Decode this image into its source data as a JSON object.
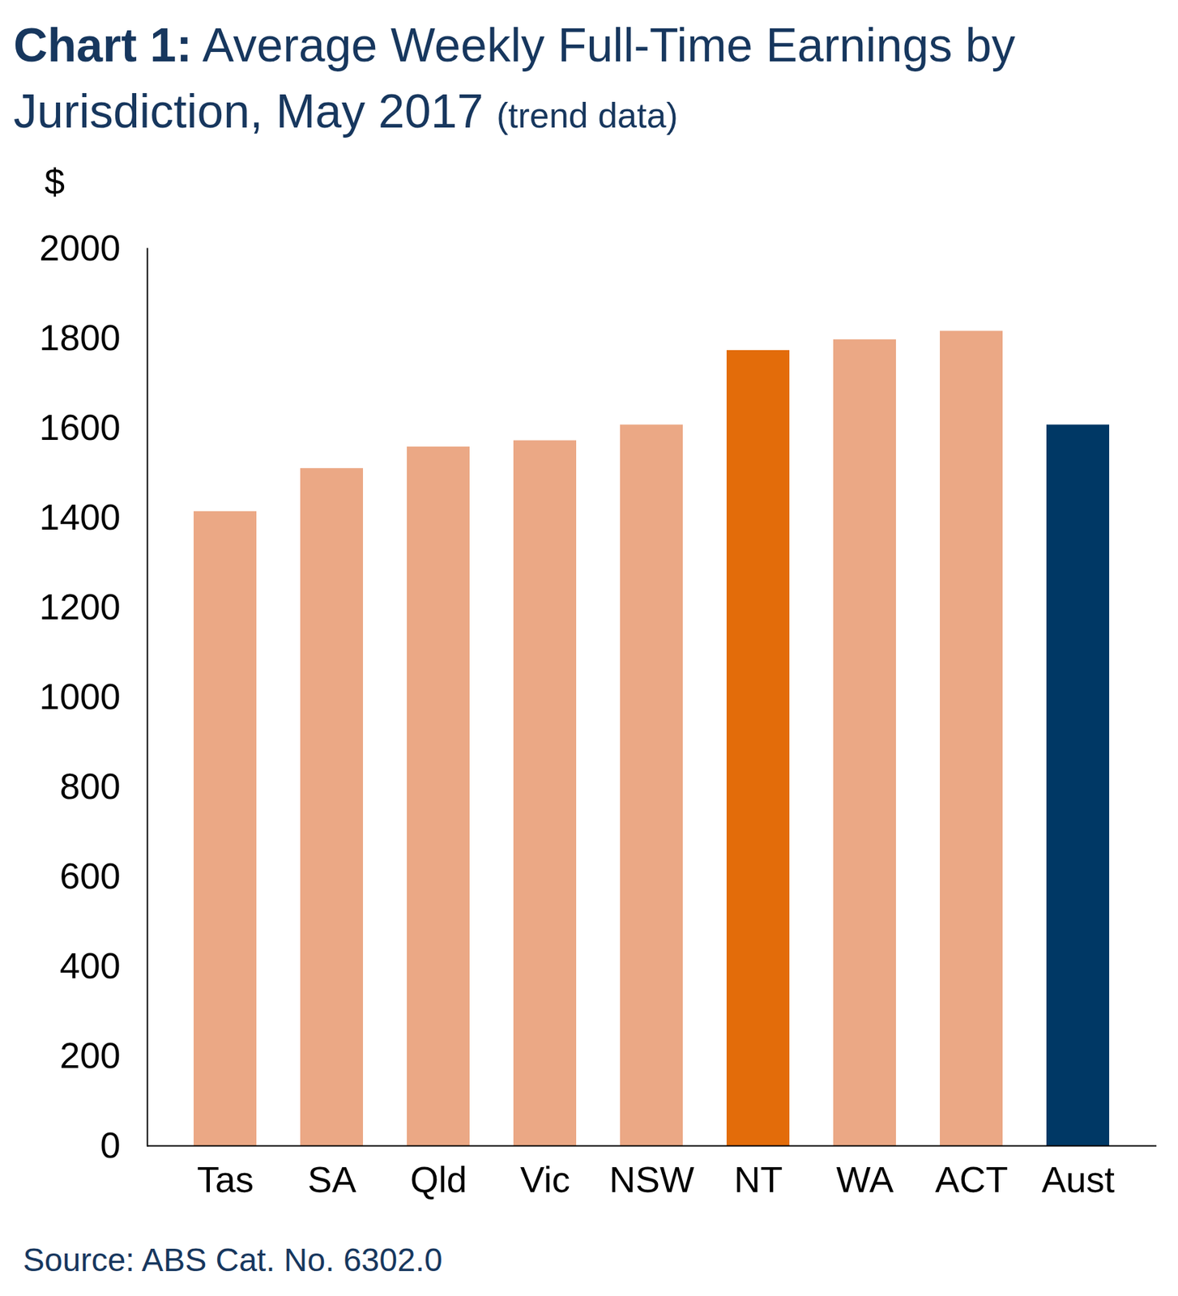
{
  "chart_data": {
    "type": "bar",
    "title": "Chart 1: Average Weekly Full-Time Earnings by Jurisdiction, May 2017",
    "subtitle": "(trend data)",
    "y_label": "$",
    "source": "Source: ABS  Cat.  No. 6302.0",
    "categories": [
      "Tas",
      "SA",
      "Qld",
      "Vic",
      "NSW",
      "NT",
      "WA",
      "ACT",
      "Aust"
    ],
    "values": [
      1414,
      1510,
      1558,
      1572,
      1607,
      1773,
      1797,
      1816,
      1607
    ],
    "colors": [
      "#eba885",
      "#eba885",
      "#eba885",
      "#eba885",
      "#eba885",
      "#e36c0a",
      "#eba885",
      "#eba885",
      "#003865"
    ],
    "ylim": [
      0,
      2000
    ],
    "yticks": [
      0,
      200,
      400,
      600,
      800,
      1000,
      1200,
      1400,
      1600,
      1800,
      2000
    ],
    "grid": false
  }
}
